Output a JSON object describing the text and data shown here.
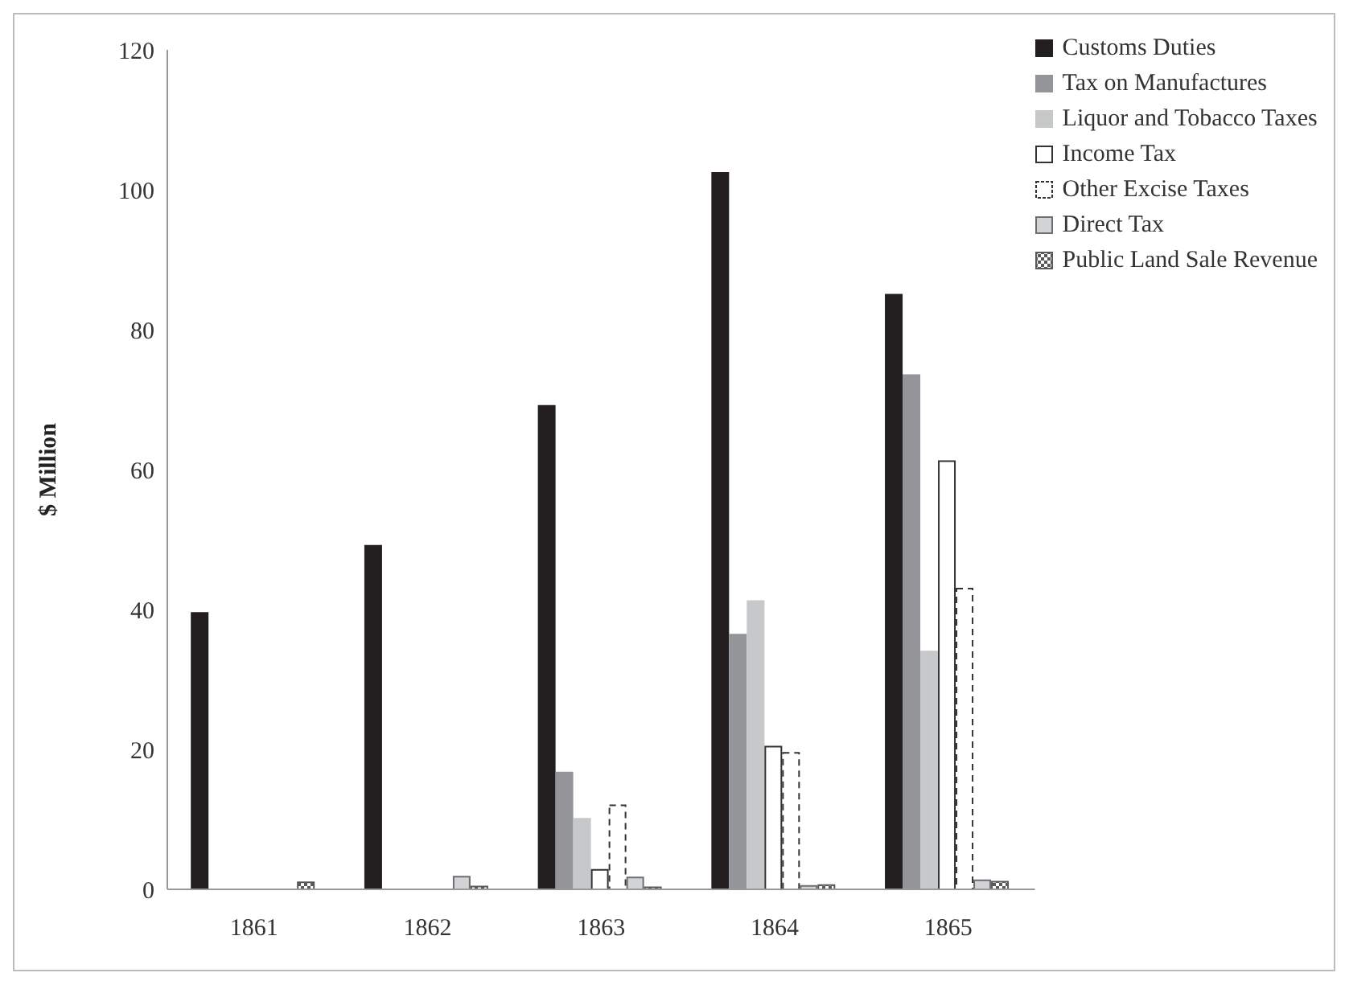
{
  "chart_data": {
    "type": "bar",
    "ylabel": "$ Million",
    "categories": [
      "1861",
      "1862",
      "1863",
      "1864",
      "1865"
    ],
    "series": [
      {
        "name": "Customs Duties",
        "color": "#231f20",
        "values": [
          39.5,
          49.1,
          69.1,
          102.4,
          85
        ]
      },
      {
        "name": "Tax on Manufactures",
        "color": "#939598",
        "values": [
          null,
          null,
          16.7,
          36.4,
          73.5
        ]
      },
      {
        "name": "Liquor and Tobacco Taxes",
        "color": "#c7c8ca",
        "values": [
          null,
          null,
          10.1,
          41.2,
          34
        ]
      },
      {
        "name": "Income Tax",
        "color": "#ffffff",
        "values": [
          null,
          null,
          2.8,
          20.4,
          61.2
        ]
      },
      {
        "name": "Other Excise Taxes",
        "color": "#ffffff",
        "line_style": "dashed",
        "values": [
          null,
          null,
          12,
          19.5,
          43
        ]
      },
      {
        "name": "Direct Tax",
        "color": "#d1d3d4",
        "values": [
          null,
          1.8,
          1.7,
          0.5,
          1.3
        ]
      },
      {
        "name": "Public Land Sale Revenue",
        "color": "#58595b",
        "values": [
          1,
          0.4,
          0.3,
          0.6,
          1.1
        ]
      }
    ],
    "ylim": [
      0,
      120
    ],
    "yticks": [
      0,
      20,
      40,
      60,
      80,
      100,
      120
    ],
    "grid": false,
    "legend": "top right"
  }
}
